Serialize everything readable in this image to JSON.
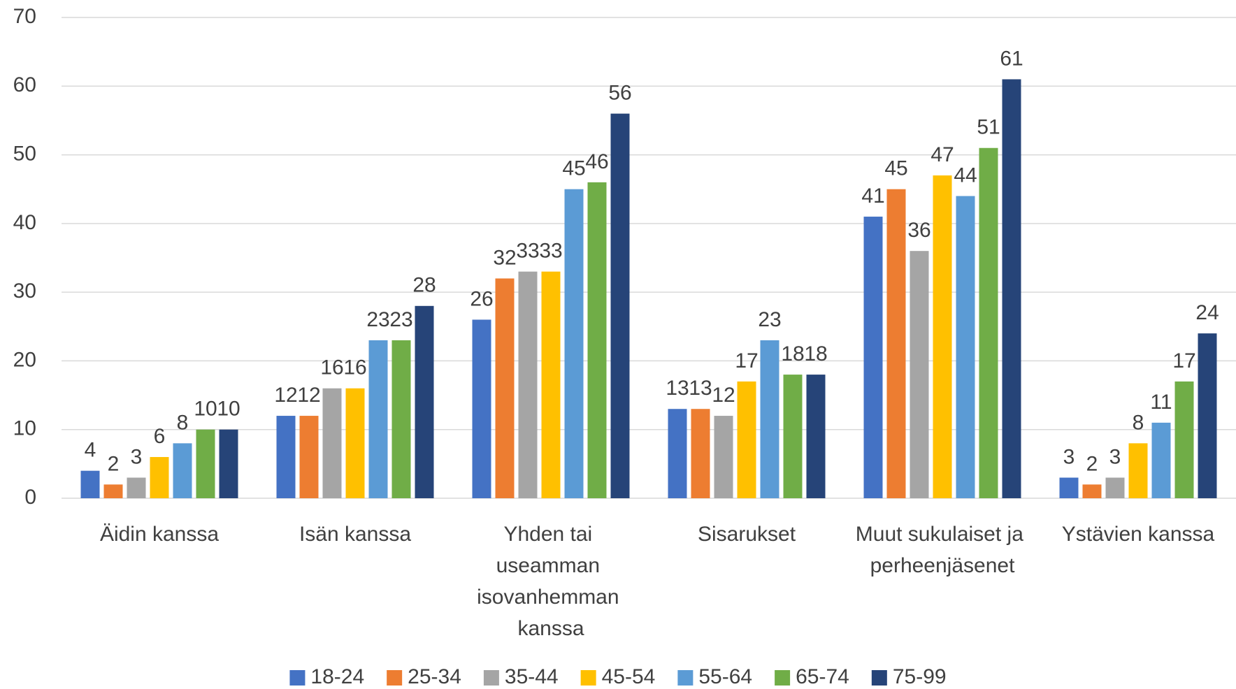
{
  "chart_data": {
    "type": "bar",
    "categories": [
      "Äidin kanssa",
      "Isän kanssa",
      "Yhden tai useamman isovanhemman kanssa",
      "Sisarukset",
      "Muut sukulaiset ja perheenjäsenet",
      "Ystävien kanssa"
    ],
    "series": [
      {
        "name": "18-24",
        "color": "#4472c4",
        "values": [
          4,
          12,
          26,
          13,
          41,
          3
        ]
      },
      {
        "name": "25-34",
        "color": "#ed7d31",
        "values": [
          2,
          12,
          32,
          13,
          45,
          2
        ]
      },
      {
        "name": "35-44",
        "color": "#a5a5a5",
        "values": [
          3,
          16,
          33,
          12,
          36,
          3
        ]
      },
      {
        "name": "45-54",
        "color": "#ffc000",
        "values": [
          6,
          16,
          33,
          17,
          47,
          8
        ]
      },
      {
        "name": "55-64",
        "color": "#5b9bd5",
        "values": [
          8,
          23,
          45,
          23,
          44,
          11
        ]
      },
      {
        "name": "65-74",
        "color": "#70ad47",
        "values": [
          10,
          23,
          46,
          18,
          51,
          17
        ]
      },
      {
        "name": "75-99",
        "color": "#264478",
        "values": [
          10,
          28,
          56,
          18,
          61,
          24
        ]
      }
    ],
    "ylim": [
      0,
      70
    ],
    "yticks": [
      0,
      10,
      20,
      30,
      40,
      50,
      60,
      70
    ],
    "grid": true,
    "legend": "bottom"
  }
}
